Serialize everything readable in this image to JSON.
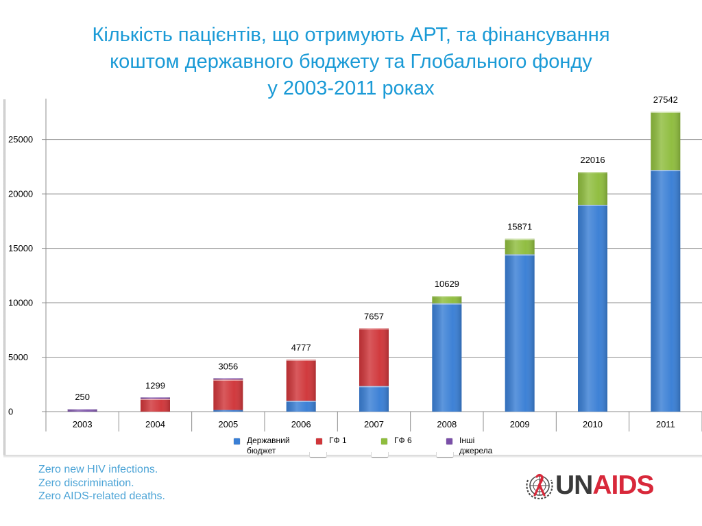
{
  "title": {
    "line1": "Кількість пацієнтів, що отримують АРТ, та фінансування",
    "line2": "коштом державного бюджету та Глобального фонду",
    "line3": "у 2003-2011 роках"
  },
  "chart_data": {
    "type": "bar",
    "stacked": true,
    "categories": [
      "2003",
      "2004",
      "2005",
      "2006",
      "2007",
      "2008",
      "2009",
      "2010",
      "2011"
    ],
    "series": [
      {
        "name": "Державний бюджет",
        "color": "#3a7fd5",
        "values": [
          0,
          0,
          150,
          1000,
          2350,
          9950,
          14450,
          19000,
          22200
        ]
      },
      {
        "name": "ГФ 1",
        "color": "#d0363a",
        "values": [
          0,
          1180,
          2800,
          3777,
          5307,
          0,
          0,
          0,
          0
        ]
      },
      {
        "name": "ГФ 6",
        "color": "#8fbd3e",
        "values": [
          0,
          0,
          0,
          0,
          0,
          679,
          1421,
          3016,
          5342
        ]
      },
      {
        "name": "Інші джерела",
        "color": "#7a4fa8",
        "values": [
          250,
          119,
          106,
          0,
          0,
          0,
          0,
          0,
          0
        ]
      }
    ],
    "totals": [
      250,
      1299,
      3056,
      4777,
      7657,
      10629,
      15871,
      22016,
      27542
    ],
    "total_labels": [
      "250",
      "1299",
      "3056",
      "4777",
      "7657",
      "10629",
      "15871",
      "22016",
      "27542"
    ],
    "y_ticks": [
      0,
      5000,
      10000,
      15000,
      20000,
      25000
    ],
    "y_tick_labels": [
      "0",
      "5000",
      "10000",
      "15000",
      "20000",
      "25000"
    ],
    "ylim": [
      0,
      28500
    ],
    "grid": true,
    "legend_position": "bottom"
  },
  "legend": {
    "items": [
      {
        "label": "Державний бюджет",
        "color": "#3a7fd5"
      },
      {
        "label": "ГФ  1",
        "color": "#d0363a"
      },
      {
        "label": "ГФ  6",
        "color": "#8fbd3e"
      },
      {
        "label": "Інші джерела",
        "color": "#7a4fa8"
      }
    ]
  },
  "slogan": {
    "line1": "Zero new HIV infections.",
    "line2": "Zero discrimination.",
    "line3": "Zero AIDS-related deaths."
  },
  "logo": {
    "un": "UN",
    "aids": "AIDS"
  }
}
